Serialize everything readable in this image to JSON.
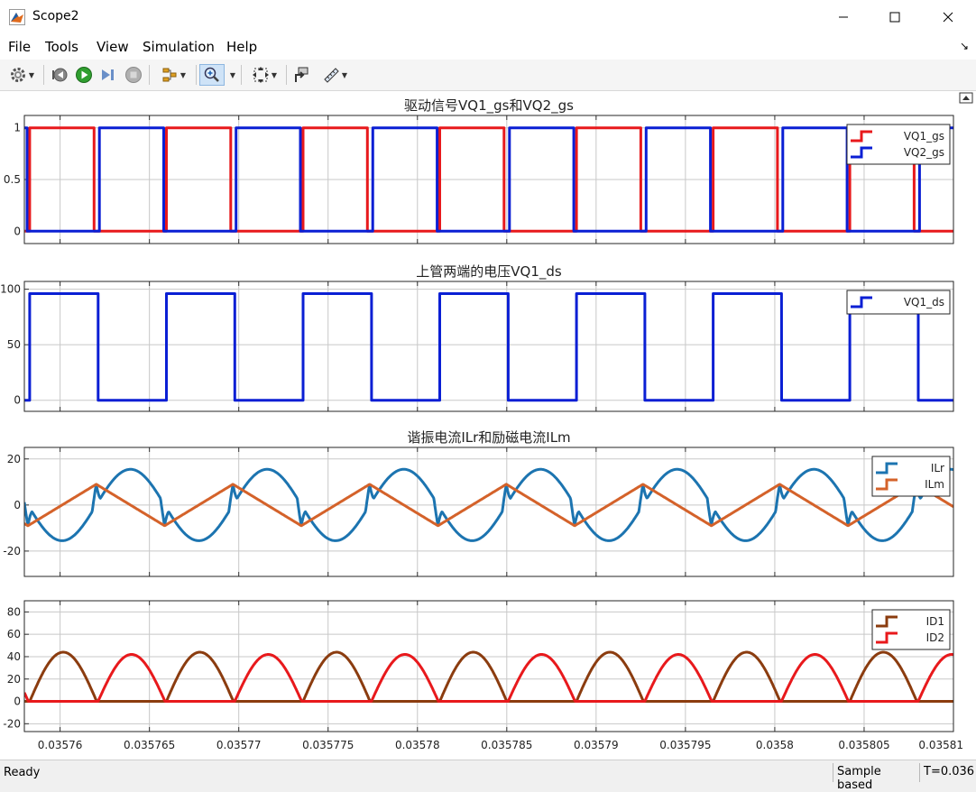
{
  "window": {
    "title": "Scope2"
  },
  "menu": [
    "File",
    "Tools",
    "View",
    "Simulation",
    "Help"
  ],
  "toolbar": [
    "configuration-properties",
    "step-back",
    "run",
    "step-forward",
    "stop",
    "signal-selector",
    "zoom-in",
    "autoscale",
    "highlight-block",
    "measurement-tools"
  ],
  "status": {
    "ready": "Ready",
    "sample_mode": "Sample based",
    "time": "T=0.036"
  },
  "colors": {
    "red": "#e8191c",
    "blue": "#0a1fd4",
    "teal": "#1c74b0",
    "orange": "#d4622a",
    "brown": "#8b3c0f"
  },
  "xaxis": {
    "lim": [
      0.035758,
      0.03581
    ],
    "tick_values": [
      0.03576,
      0.035765,
      0.03577,
      0.035775,
      0.03578,
      0.035785,
      0.03579,
      0.035795,
      0.0358,
      0.035805,
      0.03581
    ],
    "tick_labels": [
      "0.03576",
      "0.035765",
      "0.03577",
      "0.035775",
      "0.03578",
      "0.035785",
      "0.03579",
      "0.035795",
      "0.0358",
      "0.035805",
      "0.03581"
    ]
  },
  "chart_data": [
    {
      "type": "line",
      "title": "驱动信号VQ1_gs和VQ2_gs",
      "ylim": [
        -0.12,
        1.12
      ],
      "yticks": [
        0,
        0.5,
        1
      ],
      "ytick_labels": [
        "0",
        "0.5",
        "1"
      ],
      "grid": true,
      "legend": "top-right",
      "series": [
        {
          "name": "VQ1_gs",
          "color": "#e8191c",
          "kind": "pulse",
          "period": 7.65e-06,
          "t_high": 0.0357583,
          "duty_width": 3.6e-06,
          "low": 0,
          "high": 1
        },
        {
          "name": "VQ2_gs",
          "color": "#0a1fd4",
          "kind": "pulse",
          "period": 7.65e-06,
          "t_high": 0.0357622,
          "duty_width": 3.6e-06,
          "low": 0,
          "high": 1
        }
      ]
    },
    {
      "type": "line",
      "title": "上管两端的电压VQ1_ds",
      "ylim": [
        -10,
        107
      ],
      "yticks": [
        0,
        50,
        100
      ],
      "ytick_labels": [
        "0",
        "50",
        "100"
      ],
      "grid": true,
      "legend": "top-right",
      "series": [
        {
          "name": "VQ1_ds",
          "color": "#0a1fd4",
          "kind": "pulse",
          "period": 7.65e-06,
          "t_high": 0.0357583,
          "duty_width": 3.83e-06,
          "low": 0,
          "high": 96
        }
      ]
    },
    {
      "type": "line",
      "title": "谐振电流ILr和励磁电流ILm",
      "ylim": [
        -31,
        25
      ],
      "yticks": [
        -20,
        0,
        20
      ],
      "ytick_labels": [
        "-20",
        "0",
        "20"
      ],
      "grid": true,
      "legend": "top-right",
      "series": [
        {
          "name": "ILr",
          "color": "#1c74b0",
          "kind": "sine",
          "period": 7.65e-06,
          "amplitude": 15.5
        },
        {
          "name": "ILm",
          "color": "#d4622a",
          "kind": "triangle",
          "period": 7.65e-06,
          "amplitude": 9
        }
      ]
    },
    {
      "type": "line",
      "title": "",
      "ylim": [
        -27,
        90
      ],
      "yticks": [
        -20,
        0,
        20,
        40,
        60,
        80
      ],
      "ytick_labels": [
        "-20",
        "0",
        "20",
        "40",
        "60",
        "80"
      ],
      "grid": true,
      "legend": "top-right",
      "series": [
        {
          "name": "ID1",
          "color": "#8b3c0f",
          "kind": "half-sine",
          "period": 7.65e-06,
          "peak": 44
        },
        {
          "name": "ID2",
          "color": "#e8191c",
          "kind": "half-sine",
          "period": 7.65e-06,
          "peak": 42
        }
      ]
    }
  ]
}
